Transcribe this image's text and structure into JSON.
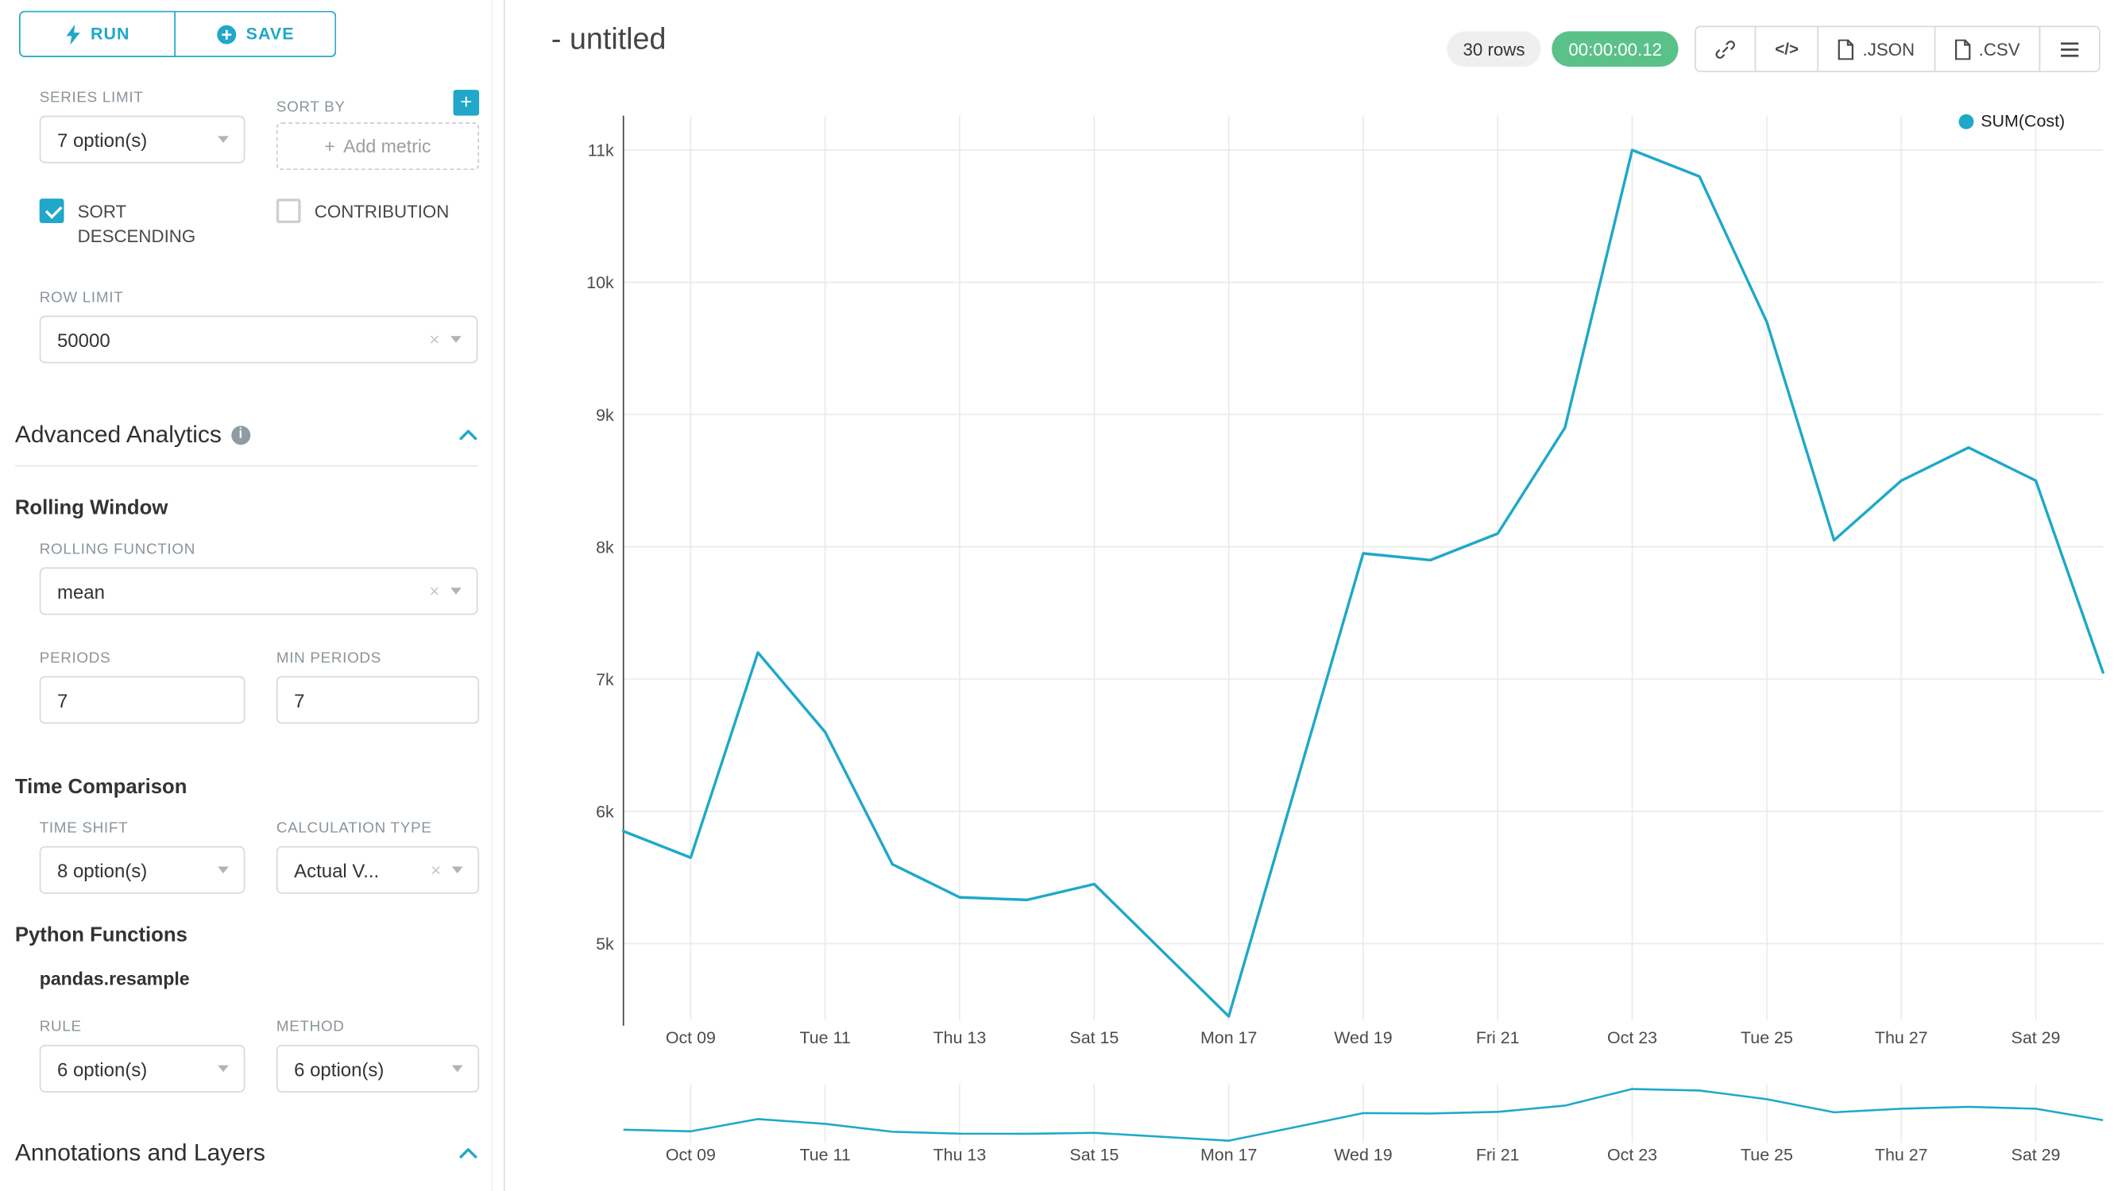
{
  "colors": {
    "accent": "#20A7C9",
    "success": "#5AC189",
    "line": "#1FA8C9"
  },
  "sidebar": {
    "run_label": "RUN",
    "save_label": "SAVE",
    "series_limit": {
      "label": "SERIES LIMIT",
      "value": "7 option(s)"
    },
    "sort_by": {
      "label": "SORT BY",
      "plus_glyph": "+",
      "placeholder": "Add metric"
    },
    "sort_descending": {
      "label": "SORT DESCENDING",
      "checked": true
    },
    "contribution": {
      "label": "CONTRIBUTION",
      "checked": false
    },
    "row_limit": {
      "label": "ROW LIMIT",
      "value": "50000"
    },
    "advanced_analytics": {
      "title": "Advanced Analytics",
      "info_glyph": "i"
    },
    "rolling_window": {
      "title": "Rolling Window"
    },
    "rolling_function": {
      "label": "ROLLING FUNCTION",
      "value": "mean"
    },
    "periods": {
      "label": "PERIODS",
      "value": "7"
    },
    "min_periods": {
      "label": "MIN PERIODS",
      "value": "7"
    },
    "time_comparison": {
      "title": "Time Comparison"
    },
    "time_shift": {
      "label": "TIME SHIFT",
      "value": "8 option(s)"
    },
    "calculation_type": {
      "label": "CALCULATION TYPE",
      "value": "Actual V..."
    },
    "python_functions": {
      "title": "Python Functions",
      "subtitle": "pandas.resample"
    },
    "rule": {
      "label": "RULE",
      "value": "6 option(s)"
    },
    "method": {
      "label": "METHOD",
      "value": "6 option(s)"
    },
    "annotations": {
      "title": "Annotations and Layers"
    }
  },
  "header": {
    "title": "- untitled",
    "rows_badge": "30 rows",
    "timer_badge": "00:00:00.12",
    "code_glyph": "</>",
    "json_label": ".JSON",
    "csv_label": ".CSV"
  },
  "chart_data": {
    "type": "line",
    "title": "- untitled",
    "legend": [
      "SUM(Cost)"
    ],
    "x": [
      "Oct 08",
      "Oct 09",
      "Oct 10",
      "Oct 11",
      "Oct 12",
      "Oct 13",
      "Oct 14",
      "Oct 15",
      "Oct 16",
      "Oct 17",
      "Oct 18",
      "Oct 19",
      "Oct 20",
      "Oct 21",
      "Oct 22",
      "Oct 23",
      "Oct 24",
      "Oct 25",
      "Oct 26",
      "Oct 27",
      "Oct 28",
      "Oct 29",
      "Oct 30"
    ],
    "series": [
      {
        "name": "SUM(Cost)",
        "values": [
          5850,
          5650,
          7200,
          6600,
          5600,
          5350,
          5330,
          5450,
          4950,
          4450,
          6200,
          7950,
          7900,
          8100,
          8900,
          11000,
          10800,
          9700,
          8050,
          8500,
          8750,
          8500,
          7050
        ]
      }
    ],
    "x_tick_indices": [
      1,
      3,
      5,
      7,
      9,
      11,
      13,
      15,
      17,
      19,
      21
    ],
    "x_tick_labels": [
      "Oct 09",
      "Tue 11",
      "Thu 13",
      "Sat 15",
      "Mon 17",
      "Wed 19",
      "Fri 21",
      "Oct 23",
      "Tue 25",
      "Thu 27",
      "Sat 29"
    ],
    "y_ticks": [
      5000,
      6000,
      7000,
      8000,
      9000,
      10000,
      11000
    ],
    "y_tick_labels": [
      "5k",
      "6k",
      "7k",
      "8k",
      "9k",
      "10k",
      "11k"
    ],
    "ylim": [
      4420,
      11260
    ],
    "mini_ylim": [
      4200,
      11600
    ],
    "grid": true,
    "legend_position": "top-right",
    "line_color": "#1FA8C9",
    "has_mini_overview": true
  }
}
